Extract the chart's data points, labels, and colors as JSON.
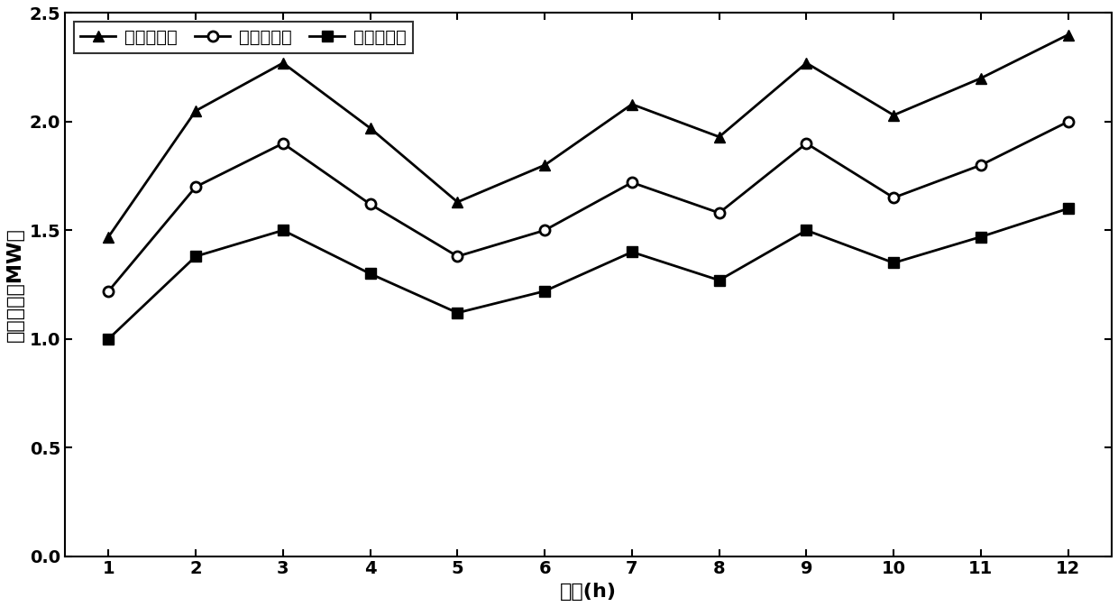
{
  "x": [
    1,
    2,
    3,
    4,
    5,
    6,
    7,
    8,
    9,
    10,
    11,
    12
  ],
  "max_values": [
    1.47,
    2.05,
    2.27,
    1.97,
    1.63,
    1.8,
    2.08,
    1.93,
    2.27,
    2.03,
    2.2,
    2.4
  ],
  "expected_values": [
    1.22,
    1.7,
    1.9,
    1.62,
    1.38,
    1.5,
    1.72,
    1.58,
    1.9,
    1.65,
    1.8,
    2.0
  ],
  "min_values": [
    1.0,
    1.38,
    1.5,
    1.3,
    1.12,
    1.22,
    1.4,
    1.27,
    1.5,
    1.35,
    1.47,
    1.6
  ],
  "xlabel": "时段(h)",
  "ylabel": "出力预测（MW）",
  "legend_max": "出力最大値",
  "legend_exp": "出力期望値",
  "legend_min": "出力最小値",
  "ylim": [
    0,
    2.5
  ],
  "yticks": [
    0,
    0.5,
    1.0,
    1.5,
    2.0,
    2.5
  ],
  "xticks": [
    1,
    2,
    3,
    4,
    5,
    6,
    7,
    8,
    9,
    10,
    11,
    12
  ],
  "line_color": "#000000",
  "bg_color": "#ffffff",
  "linewidth": 2.0,
  "markersize": 8
}
